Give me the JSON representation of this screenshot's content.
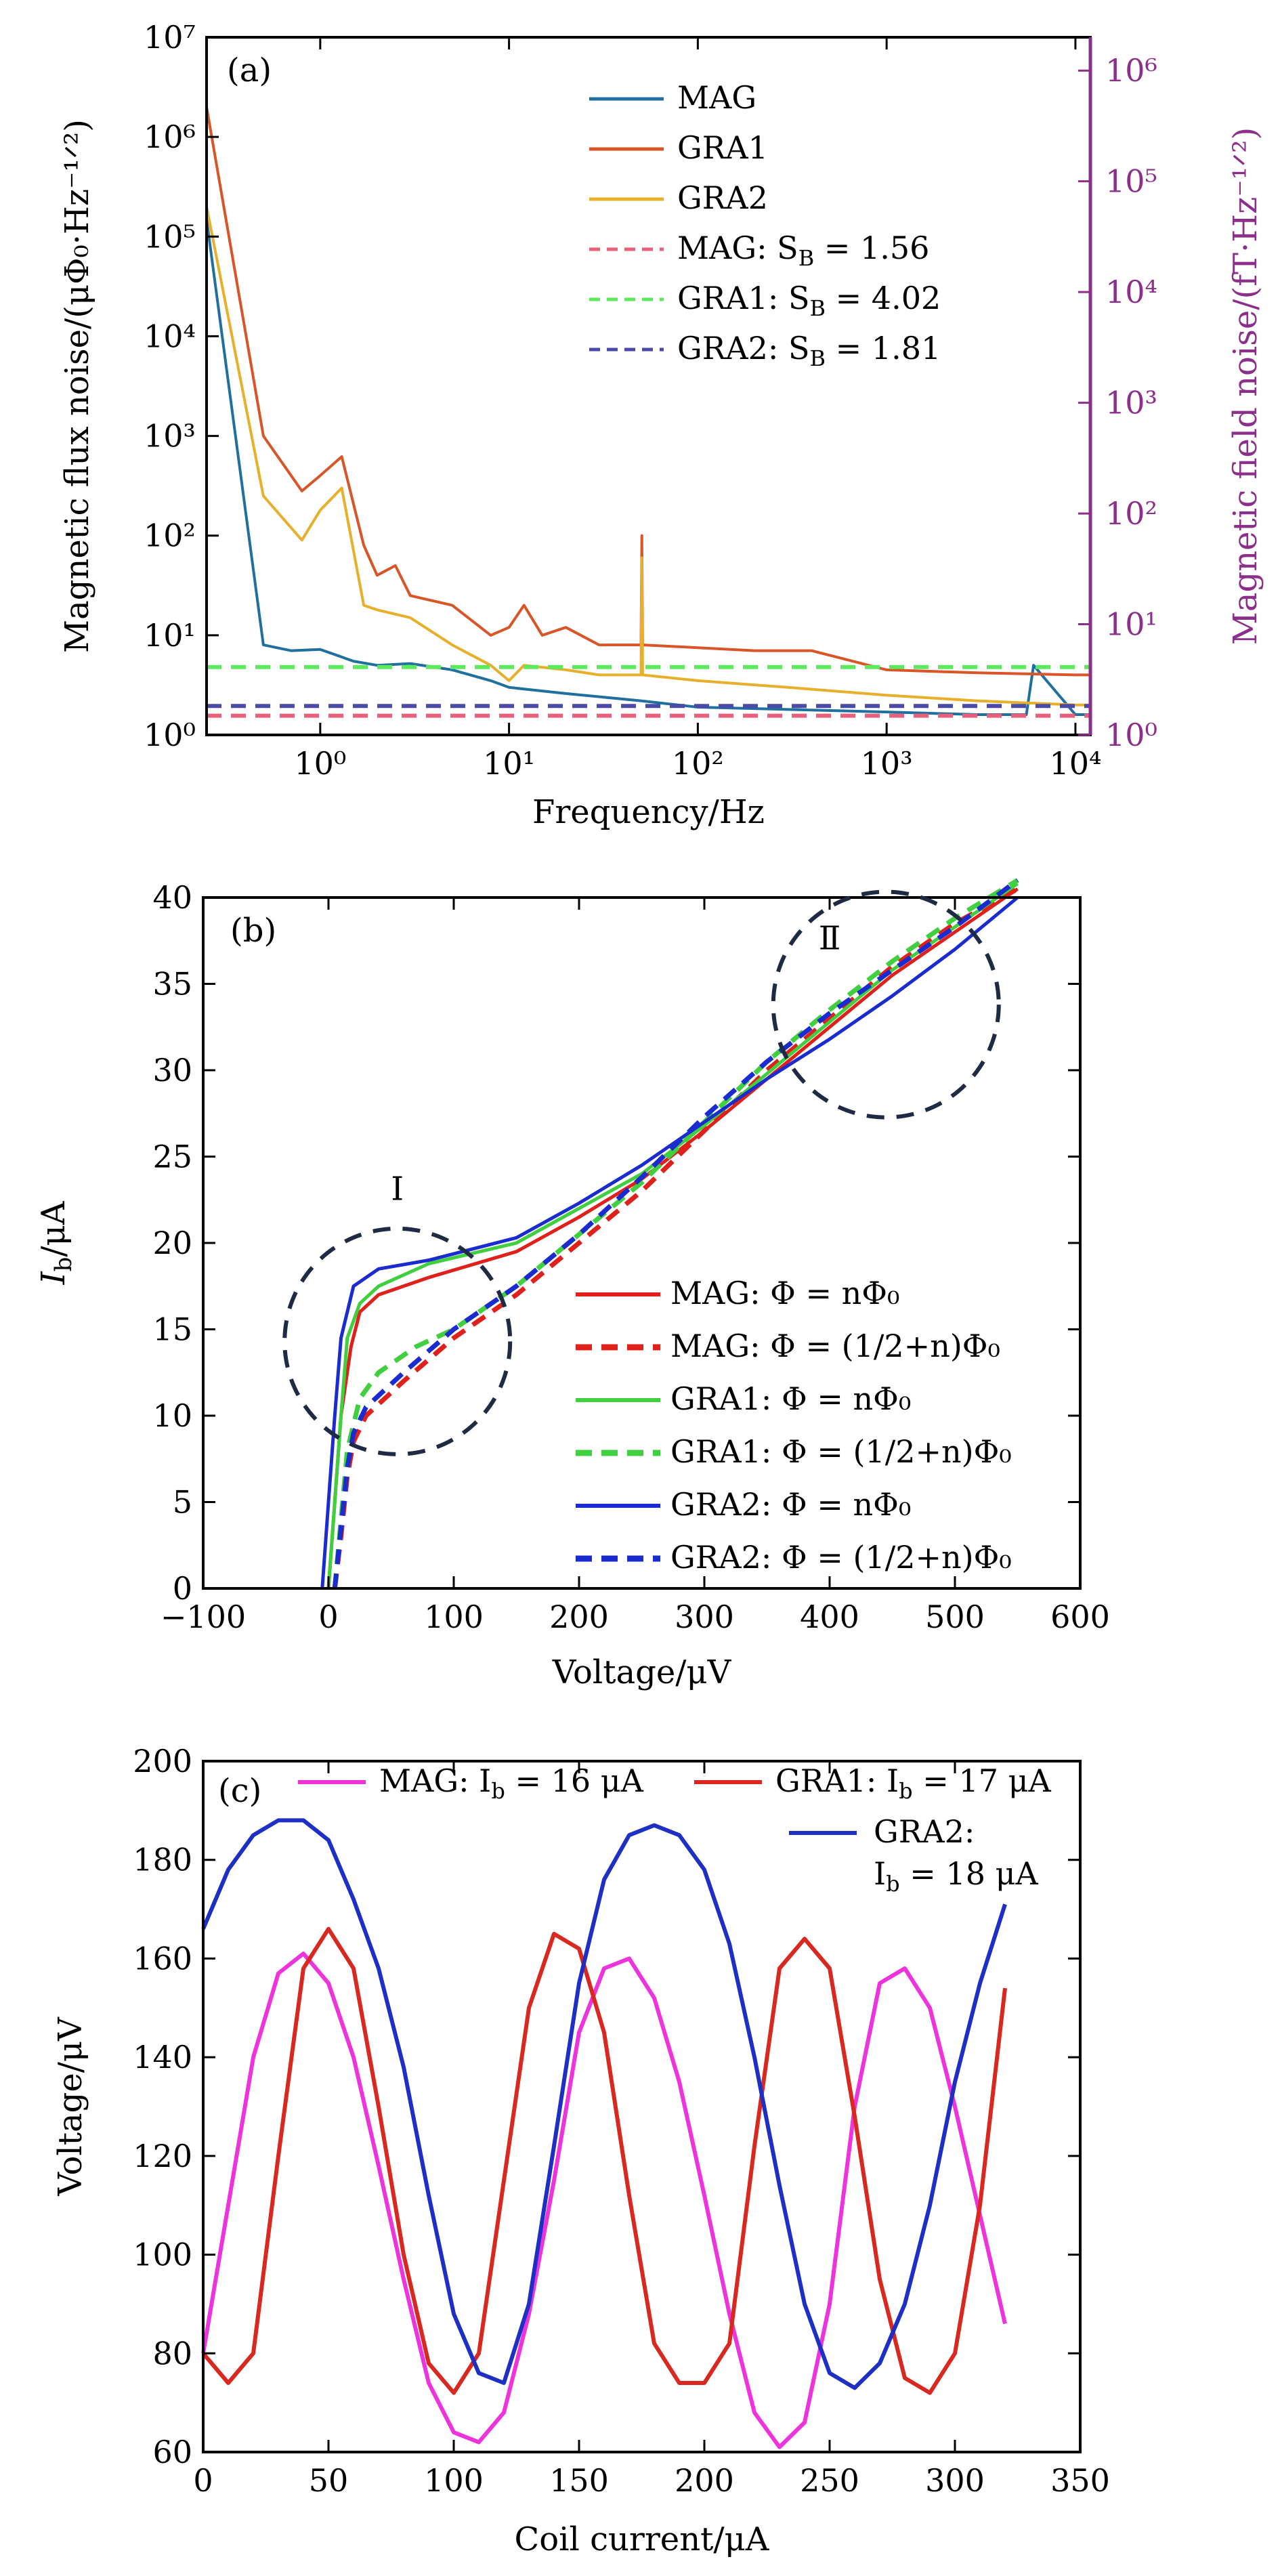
{
  "chart_data": [
    {
      "panel": "(a)",
      "type": "line",
      "xlabel": "Frequency/Hz",
      "ylabel": "Magnetic flux noise/(μΦ₀·Hz⁻¹ᐟ²)",
      "ylabel_right": "Magnetic field noise/(fT·Hz⁻¹ᐟ²)",
      "xscale": "log",
      "yscale": "log",
      "xlim": [
        0.25,
        12000
      ],
      "ylim": [
        1,
        10000000
      ],
      "ylim_right": [
        1,
        2000000
      ],
      "x_ticks": [
        1,
        10,
        100,
        1000,
        10000
      ],
      "x_tick_labels": [
        "10⁰",
        "10¹",
        "10²",
        "10³",
        "10⁴"
      ],
      "y_ticks": [
        1,
        10,
        100,
        1000,
        10000,
        100000,
        1000000,
        10000000
      ],
      "y_tick_labels": [
        "10⁰",
        "10¹",
        "10²",
        "10³",
        "10⁴",
        "10⁵",
        "10⁶",
        "10⁷"
      ],
      "y_right_ticks": [
        1,
        10,
        100,
        1000,
        10000,
        100000,
        1000000
      ],
      "y_right_tick_labels": [
        "10⁰",
        "10¹",
        "10²",
        "10³",
        "10⁴",
        "10⁵",
        "10⁶"
      ],
      "right_axis_color": "#8b2f8b",
      "legend_position": "top-center",
      "series": [
        {
          "name": "MAG",
          "color": "#1f6f9f",
          "style": "solid",
          "x": [
            0.25,
            0.5,
            0.7,
            1.0,
            1.5,
            2,
            3,
            5,
            8,
            10,
            20,
            50,
            100,
            300,
            1000,
            3000,
            5500,
            6000,
            10000,
            12000
          ],
          "y": [
            150000,
            8,
            7,
            7.2,
            5.5,
            5,
            5.2,
            4.5,
            3.5,
            3,
            2.6,
            2.2,
            1.9,
            1.8,
            1.7,
            1.6,
            1.6,
            5,
            1.6,
            1.6
          ]
        },
        {
          "name": "GRA1",
          "color": "#d95427",
          "style": "solid",
          "x": [
            0.25,
            0.5,
            0.8,
            1.0,
            1.3,
            1.7,
            2.0,
            2.5,
            3,
            5,
            8,
            10,
            12,
            15,
            20,
            30,
            50,
            50.5,
            51,
            100,
            200,
            400,
            1000,
            3000,
            10000,
            12000
          ],
          "y": [
            2000000,
            1000,
            280,
            400,
            620,
            80,
            40,
            50,
            25,
            20,
            10,
            12,
            20,
            10,
            12,
            8,
            8,
            100,
            8,
            7.5,
            7,
            7,
            4.5,
            4.2,
            4,
            4
          ]
        },
        {
          "name": "GRA2",
          "color": "#e8b02a",
          "style": "solid",
          "x": [
            0.25,
            0.5,
            0.8,
            1.0,
            1.3,
            1.7,
            2.0,
            3,
            5,
            8,
            10,
            12,
            20,
            30,
            50,
            50.5,
            51,
            100,
            300,
            1000,
            3000,
            10000,
            12000
          ],
          "y": [
            200000,
            250,
            90,
            180,
            300,
            20,
            18,
            15,
            8,
            5,
            3.5,
            5,
            4.5,
            4,
            4,
            60,
            4,
            3.5,
            3,
            2.5,
            2.2,
            2,
            2
          ]
        },
        {
          "name": "MAG: S_B = 1.56",
          "color": "#e8607a",
          "style": "dashed",
          "x": [
            0.25,
            12000
          ],
          "y": [
            1.56,
            1.56
          ]
        },
        {
          "name": "GRA1: S_B = 4.02",
          "color": "#5de85d",
          "style": "dashed",
          "x": [
            0.25,
            12000
          ],
          "y": [
            4.8,
            4.8
          ]
        },
        {
          "name": "GRA2: S_B = 1.81",
          "color": "#4a4aa8",
          "style": "dashed",
          "x": [
            0.25,
            12000
          ],
          "y": [
            1.95,
            1.95
          ]
        }
      ],
      "legend": [
        {
          "series": "MAG",
          "label": "MAG"
        },
        {
          "series": "GRA1",
          "label": "GRA1"
        },
        {
          "series": "GRA2",
          "label": "GRA2"
        },
        {
          "series": "MAG: S_B = 1.56",
          "label": "MAG: S",
          "sub": "B",
          "value": " = 1.56"
        },
        {
          "series": "GRA1: S_B = 4.02",
          "label": "GRA1: S",
          "sub": "B",
          "value": " = 4.02"
        },
        {
          "series": "GRA2: S_B = 1.81",
          "label": "GRA2: S",
          "sub": "B",
          "value": " = 1.81"
        }
      ]
    },
    {
      "panel": "(b)",
      "type": "line",
      "xlabel": "Voltage/μV",
      "ylabel": "I_b/μA",
      "xlim": [
        -100,
        600
      ],
      "ylim": [
        0,
        40
      ],
      "x_ticks": [
        -100,
        0,
        100,
        200,
        300,
        400,
        500,
        600
      ],
      "x_tick_labels": [
        "−100",
        "0",
        "100",
        "200",
        "300",
        "400",
        "500",
        "600"
      ],
      "y_ticks": [
        0,
        5,
        10,
        15,
        20,
        25,
        30,
        35,
        40
      ],
      "y_tick_labels": [
        "0",
        "5",
        "10",
        "15",
        "20",
        "25",
        "30",
        "35",
        "40"
      ],
      "legend_position": "bottom-right",
      "annotations": [
        {
          "text": "Ⅰ",
          "x": 55,
          "y": 22.5
        },
        {
          "text": "Ⅱ",
          "x": 400,
          "y": 37
        }
      ],
      "circles": [
        {
          "cx": 55,
          "cy": 14.3,
          "r_data_x": 90
        },
        {
          "cx": 445,
          "cy": 33.8,
          "r_data_x": 90
        }
      ],
      "series": [
        {
          "name": "MAG: Φ = nΦ₀",
          "color": "#e0201a",
          "style": "solid",
          "x": [
            0,
            5,
            10,
            18,
            25,
            40,
            80,
            150,
            200,
            250,
            300,
            350,
            400,
            450,
            500,
            550
          ],
          "y": [
            0,
            5,
            10,
            14,
            16,
            17,
            18,
            19.5,
            21.5,
            23.7,
            26.5,
            29.5,
            32.5,
            35.5,
            38,
            40.5
          ]
        },
        {
          "name": "MAG: Φ = (1/2+n)Φ₀",
          "color": "#e0201a",
          "style": "dashed",
          "x": [
            5,
            10,
            15,
            20,
            30,
            60,
            100,
            150,
            200,
            250,
            300,
            350,
            400,
            450,
            500,
            550
          ],
          "y": [
            0,
            3,
            6.5,
            8.5,
            10,
            12,
            14.5,
            17,
            20,
            23,
            26.5,
            30,
            33,
            36,
            38.5,
            40.5
          ]
        },
        {
          "name": "GRA1: Φ = nΦ₀",
          "color": "#3fcf3f",
          "style": "solid",
          "x": [
            0,
            5,
            10,
            15,
            25,
            40,
            80,
            150,
            200,
            250,
            300,
            350,
            400,
            450,
            500,
            550
          ],
          "y": [
            0,
            5,
            10,
            14.5,
            16.5,
            17.5,
            18.8,
            20,
            22,
            24,
            26.8,
            29.8,
            32.8,
            35.8,
            38.3,
            40.8
          ]
        },
        {
          "name": "GRA1: Φ = (1/2+n)Φ₀",
          "color": "#3fcf3f",
          "style": "dashed",
          "x": [
            5,
            10,
            15,
            25,
            40,
            70,
            100,
            150,
            200,
            250,
            300,
            350,
            400,
            450,
            500,
            550
          ],
          "y": [
            0,
            4,
            8,
            11,
            12.5,
            14,
            15,
            17.5,
            20.5,
            23.5,
            27,
            30.5,
            33.5,
            36.3,
            38.8,
            41
          ]
        },
        {
          "name": "GRA2: Φ = nΦ₀",
          "color": "#1a2ccf",
          "style": "solid",
          "x": [
            -5,
            0,
            5,
            10,
            20,
            40,
            80,
            150,
            200,
            250,
            300,
            350,
            400,
            450,
            500,
            550
          ],
          "y": [
            0,
            5,
            10,
            14.5,
            17.5,
            18.5,
            19,
            20.3,
            22.3,
            24.5,
            27,
            29.5,
            31.8,
            34.3,
            37,
            40
          ]
        },
        {
          "name": "GRA2: Φ = (1/2+n)Φ₀",
          "color": "#1a2ccf",
          "style": "dashed",
          "x": [
            5,
            10,
            15,
            20,
            30,
            60,
            100,
            150,
            200,
            250,
            300,
            350,
            400,
            450,
            500,
            550
          ],
          "y": [
            0,
            3.5,
            7,
            9,
            10.5,
            12.5,
            15,
            17.5,
            20.5,
            23.8,
            27.3,
            30.5,
            33.3,
            35.8,
            38.3,
            41
          ]
        }
      ],
      "legend": [
        {
          "series": "MAG: Φ = nΦ₀",
          "label": "MAG: Φ = nΦ₀"
        },
        {
          "series": "MAG: Φ = (1/2+n)Φ₀",
          "label": "MAG: Φ = (1/2+n)Φ₀"
        },
        {
          "series": "GRA1: Φ = nΦ₀",
          "label": "GRA1: Φ = nΦ₀"
        },
        {
          "series": "GRA1: Φ = (1/2+n)Φ₀",
          "label": "GRA1: Φ = (1/2+n)Φ₀"
        },
        {
          "series": "GRA2: Φ = nΦ₀",
          "label": "GRA2: Φ = nΦ₀"
        },
        {
          "series": "GRA2: Φ = (1/2+n)Φ₀",
          "label": "GRA2: Φ = (1/2+n)Φ₀"
        }
      ]
    },
    {
      "panel": "(c)",
      "type": "line",
      "xlabel": "Coil current/μA",
      "ylabel": "Voltage/μV",
      "xlim": [
        0,
        350
      ],
      "ylim": [
        60,
        200
      ],
      "x_ticks": [
        0,
        50,
        100,
        150,
        200,
        250,
        300,
        350
      ],
      "x_tick_labels": [
        "0",
        "50",
        "100",
        "150",
        "200",
        "250",
        "300",
        "350"
      ],
      "y_ticks": [
        60,
        80,
        100,
        120,
        140,
        160,
        180,
        200
      ],
      "y_tick_labels": [
        "60",
        "80",
        "100",
        "120",
        "140",
        "160",
        "180",
        "200"
      ],
      "legend_position": "top",
      "series": [
        {
          "name": "MAG: I_b = 16 μA",
          "color": "#ee33dd",
          "style": "solid",
          "x": [
            0,
            10,
            20,
            30,
            40,
            50,
            60,
            70,
            80,
            90,
            100,
            110,
            120,
            130,
            140,
            150,
            160,
            170,
            180,
            190,
            200,
            210,
            220,
            230,
            240,
            250,
            260,
            270,
            280,
            290,
            300,
            310,
            320
          ],
          "y": [
            80,
            110,
            140,
            157,
            161,
            155,
            140,
            118,
            95,
            74,
            64,
            62,
            68,
            88,
            115,
            145,
            158,
            160,
            152,
            135,
            112,
            88,
            68,
            61,
            66,
            90,
            130,
            155,
            158,
            150,
            130,
            108,
            86
          ]
        },
        {
          "name": "GRA1: I_b = 17 μA",
          "color": "#d9281f",
          "style": "solid",
          "x": [
            0,
            10,
            20,
            30,
            40,
            50,
            60,
            70,
            80,
            90,
            100,
            110,
            120,
            130,
            140,
            150,
            160,
            170,
            180,
            190,
            200,
            210,
            220,
            230,
            240,
            250,
            260,
            270,
            280,
            290,
            300,
            310,
            320
          ],
          "y": [
            80,
            74,
            80,
            120,
            158,
            166,
            158,
            130,
            100,
            78,
            72,
            80,
            115,
            150,
            165,
            162,
            145,
            112,
            82,
            74,
            74,
            82,
            122,
            158,
            164,
            158,
            128,
            95,
            75,
            72,
            80,
            110,
            154
          ]
        },
        {
          "name": "GRA2: I_b = 18 μA",
          "color": "#1d2fc4",
          "style": "solid",
          "x": [
            0,
            10,
            20,
            30,
            40,
            50,
            60,
            70,
            80,
            90,
            100,
            110,
            120,
            130,
            140,
            150,
            160,
            170,
            180,
            190,
            200,
            210,
            220,
            230,
            240,
            250,
            260,
            270,
            280,
            290,
            300,
            310,
            320
          ],
          "y": [
            166,
            178,
            185,
            188,
            188,
            184,
            172,
            158,
            138,
            112,
            88,
            76,
            74,
            90,
            122,
            155,
            176,
            185,
            187,
            185,
            178,
            163,
            140,
            114,
            90,
            76,
            73,
            78,
            90,
            110,
            135,
            155,
            171
          ]
        }
      ],
      "legend": [
        {
          "series": "MAG: I_b = 16 μA",
          "label": "MAG: I",
          "sub": "b",
          "value": " = 16 μA"
        },
        {
          "series": "GRA1: I_b = 17 μA",
          "label": "GRA1: I",
          "sub": "b",
          "value": " = 17 μA"
        },
        {
          "series": "GRA2: I_b = 18 μA",
          "label": "GRA2:",
          "line2": "I",
          "sub": "b",
          "value": " = 18 μA"
        }
      ]
    }
  ]
}
